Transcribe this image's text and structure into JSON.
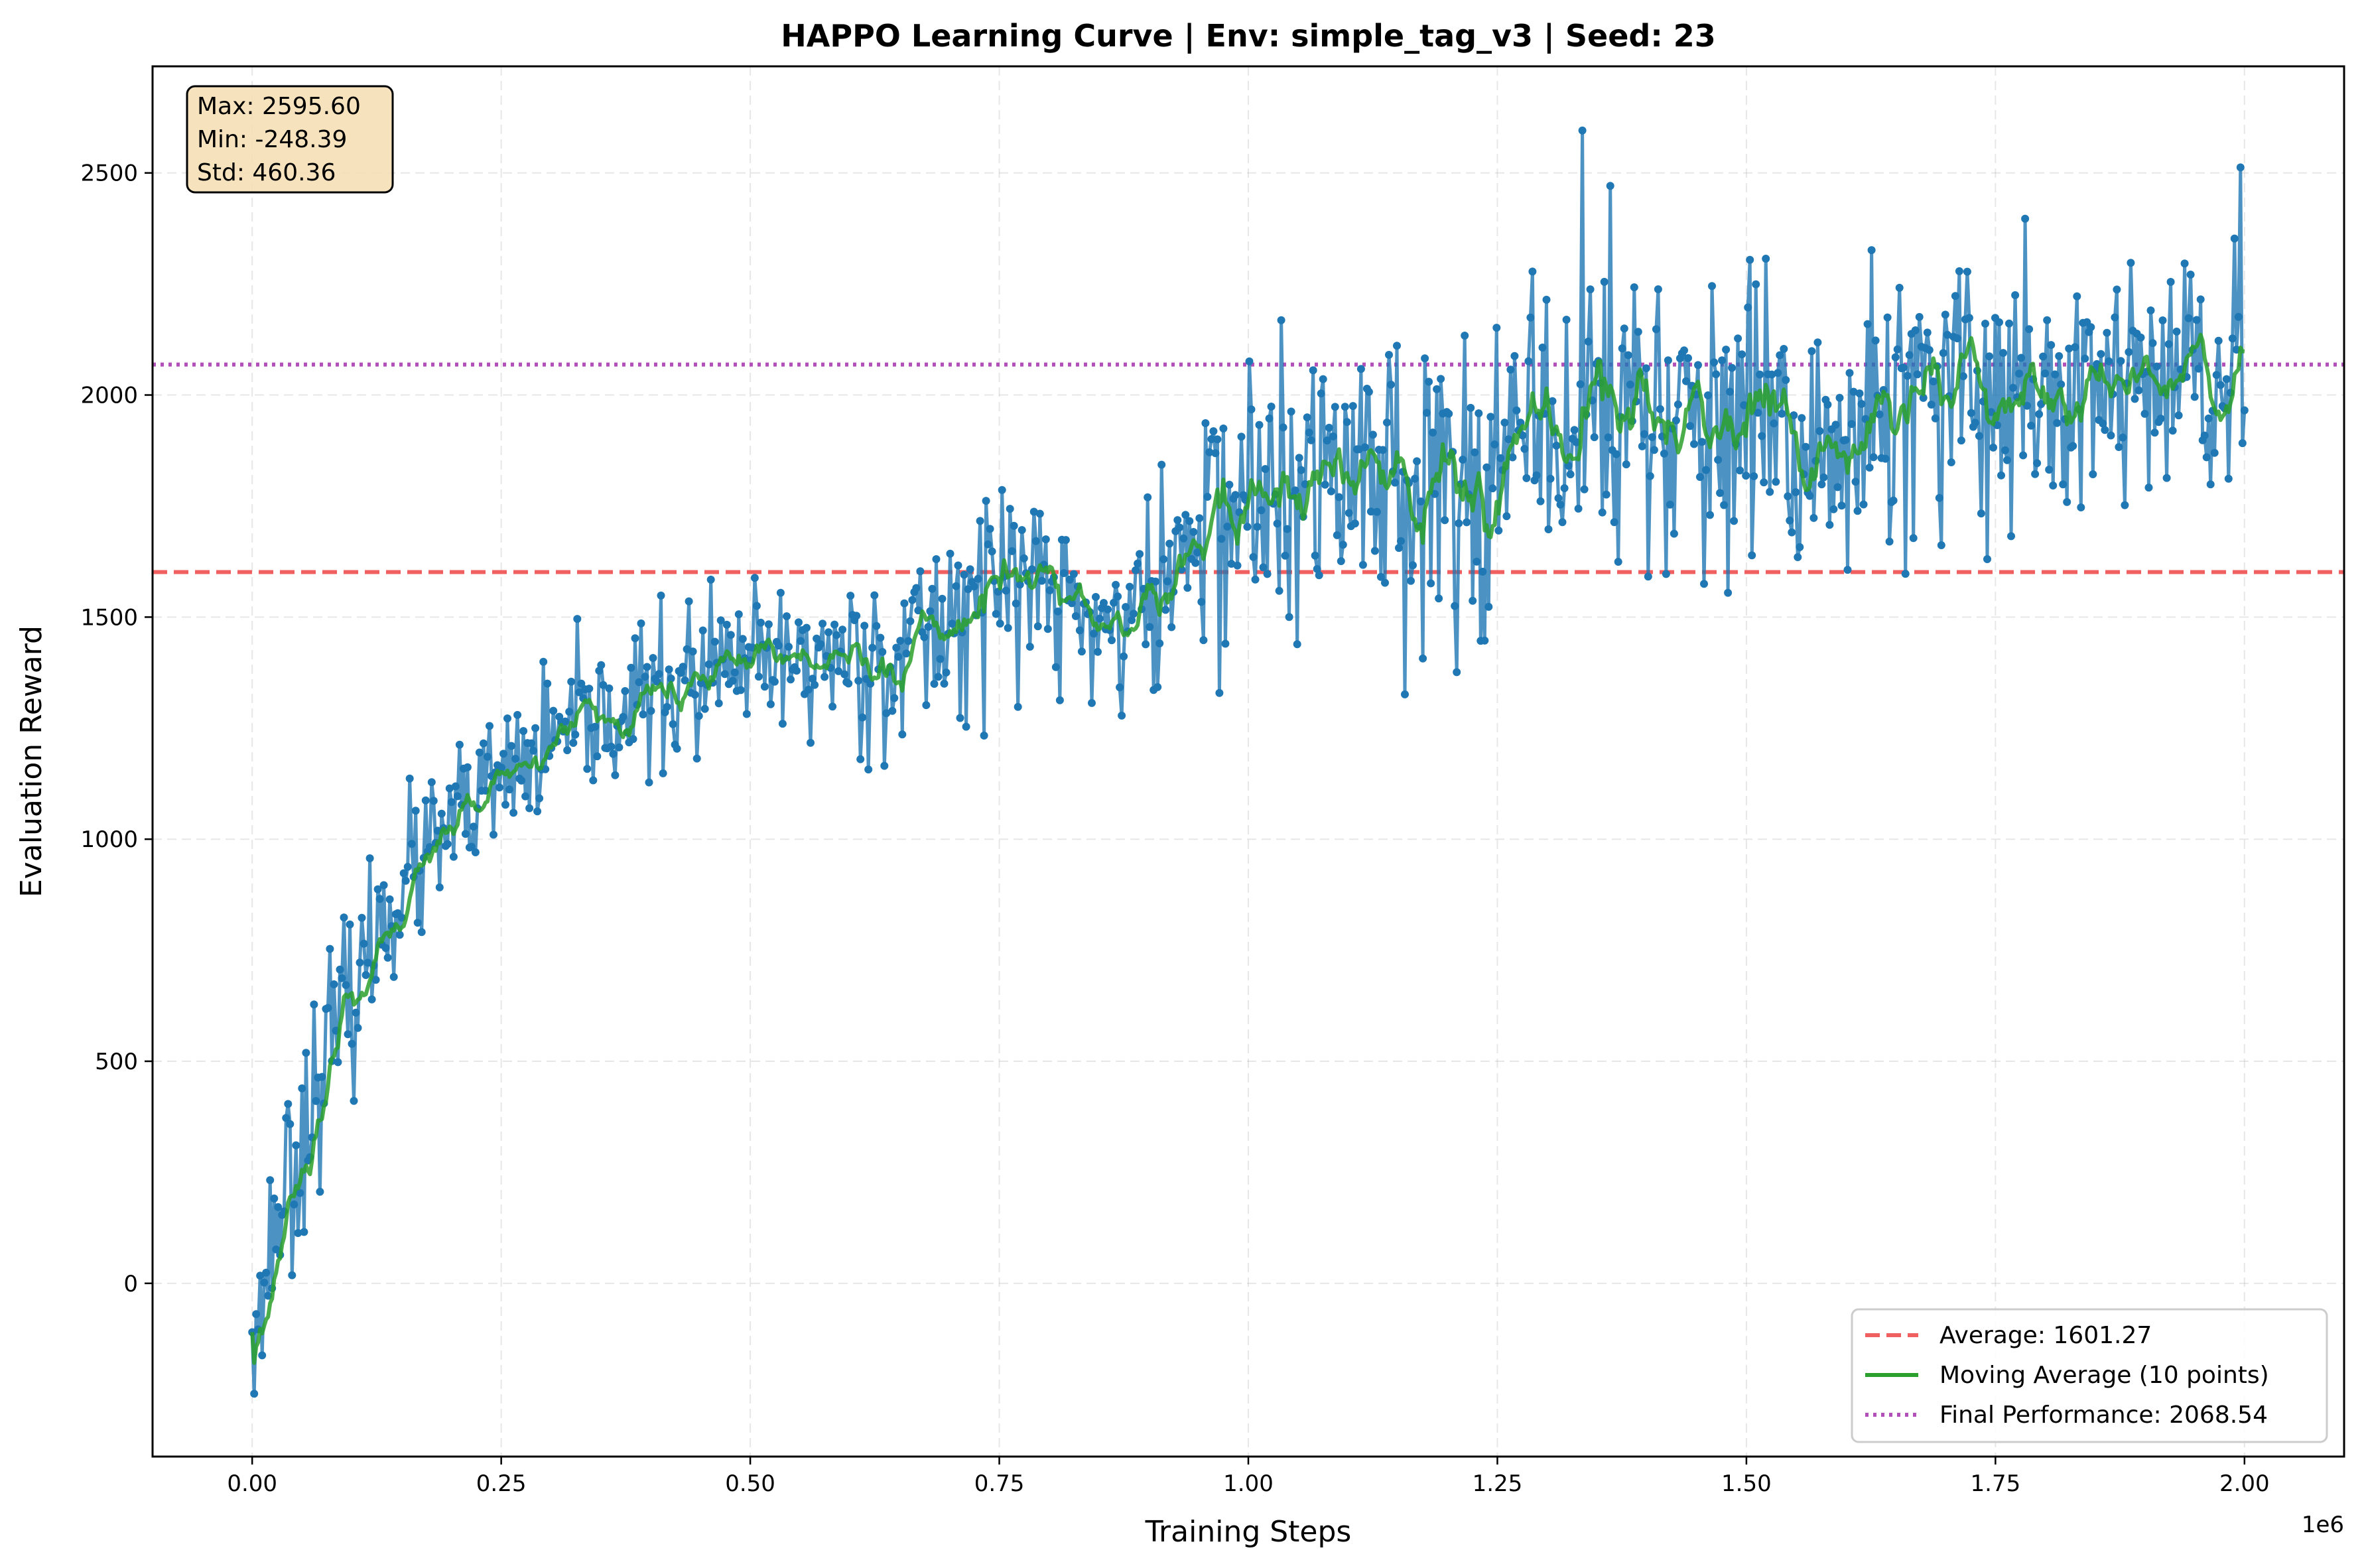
{
  "chart_data": {
    "type": "line",
    "title": "HAPPO Learning Curve | Env: simple_tag_v3 | Seed: 23",
    "xlabel": "Training Steps",
    "ylabel": "Evaluation Reward",
    "x_offset_text": "1e6",
    "xlim": [
      -0.1,
      2.1
    ],
    "ylim": [
      -390,
      2740
    ],
    "x_ticks": [
      0,
      0.25,
      0.5,
      0.75,
      1.0,
      1.25,
      1.5,
      1.75,
      2.0
    ],
    "x_tick_labels": [
      "0.00",
      "0.25",
      "0.50",
      "0.75",
      "1.00",
      "1.25",
      "1.50",
      "1.75",
      "2.00"
    ],
    "y_ticks": [
      0,
      500,
      1000,
      1500,
      2000,
      2500
    ],
    "y_tick_labels": [
      "0",
      "500",
      "1000",
      "1500",
      "2000",
      "2500"
    ],
    "grid": true,
    "legend_position": "bottom-right",
    "stats_box": [
      "Max: 2595.60",
      "Min: -248.39",
      "Std: 460.36"
    ],
    "reference_lines": [
      {
        "name": "Average: 1601.27",
        "value": 1601.27,
        "style": "dashed",
        "color": "#f06060"
      },
      {
        "name": "Final Performance: 2068.54",
        "value": 2068.54,
        "style": "dotted",
        "color": "#b050b8"
      }
    ],
    "series": [
      {
        "name": "Evaluation Reward",
        "color": "#1f77b4",
        "marker": "circle",
        "points": 1000,
        "x_range": [
          0,
          2.0
        ],
        "anchors_x": [
          0,
          0.01,
          0.02,
          0.03,
          0.05,
          0.075,
          0.1,
          0.14,
          0.2,
          0.25,
          0.3,
          0.35,
          0.4,
          0.45,
          0.5,
          0.55,
          0.6,
          0.65,
          0.7,
          0.75,
          0.8,
          0.85,
          0.9,
          0.95,
          1.0,
          1.05,
          1.1,
          1.15,
          1.2,
          1.25,
          1.3,
          1.35,
          1.4,
          1.45,
          1.5,
          1.55,
          1.6,
          1.65,
          1.7,
          1.75,
          1.8,
          1.85,
          1.9,
          1.95,
          2.0
        ],
        "anchors_y": [
          -110,
          -60,
          120,
          210,
          330,
          530,
          640,
          870,
          1020,
          1130,
          1210,
          1270,
          1320,
          1360,
          1390,
          1400,
          1420,
          1410,
          1500,
          1600,
          1560,
          1480,
          1520,
          1700,
          1780,
          1740,
          1860,
          1830,
          1800,
          1840,
          1880,
          1980,
          1960,
          1940,
          1880,
          1860,
          1900,
          1940,
          1980,
          2040,
          2020,
          2000,
          2020,
          2030,
          2000
        ],
        "noise_std": [
          60,
          60,
          100,
          120,
          110,
          95,
          95,
          90,
          85,
          80,
          80,
          85,
          85,
          90,
          90,
          90,
          95,
          100,
          110,
          115,
          110,
          115,
          120,
          130,
          170,
          170,
          175,
          170,
          170,
          170,
          175,
          180,
          180,
          180,
          180,
          180,
          175,
          175,
          180,
          180,
          175,
          170,
          170,
          170,
          160
        ],
        "max": 2595.6,
        "min": -248.39,
        "std": 460.36
      },
      {
        "name": "Moving Average (10 points)",
        "color": "#2ca02c",
        "window": 10
      }
    ]
  }
}
